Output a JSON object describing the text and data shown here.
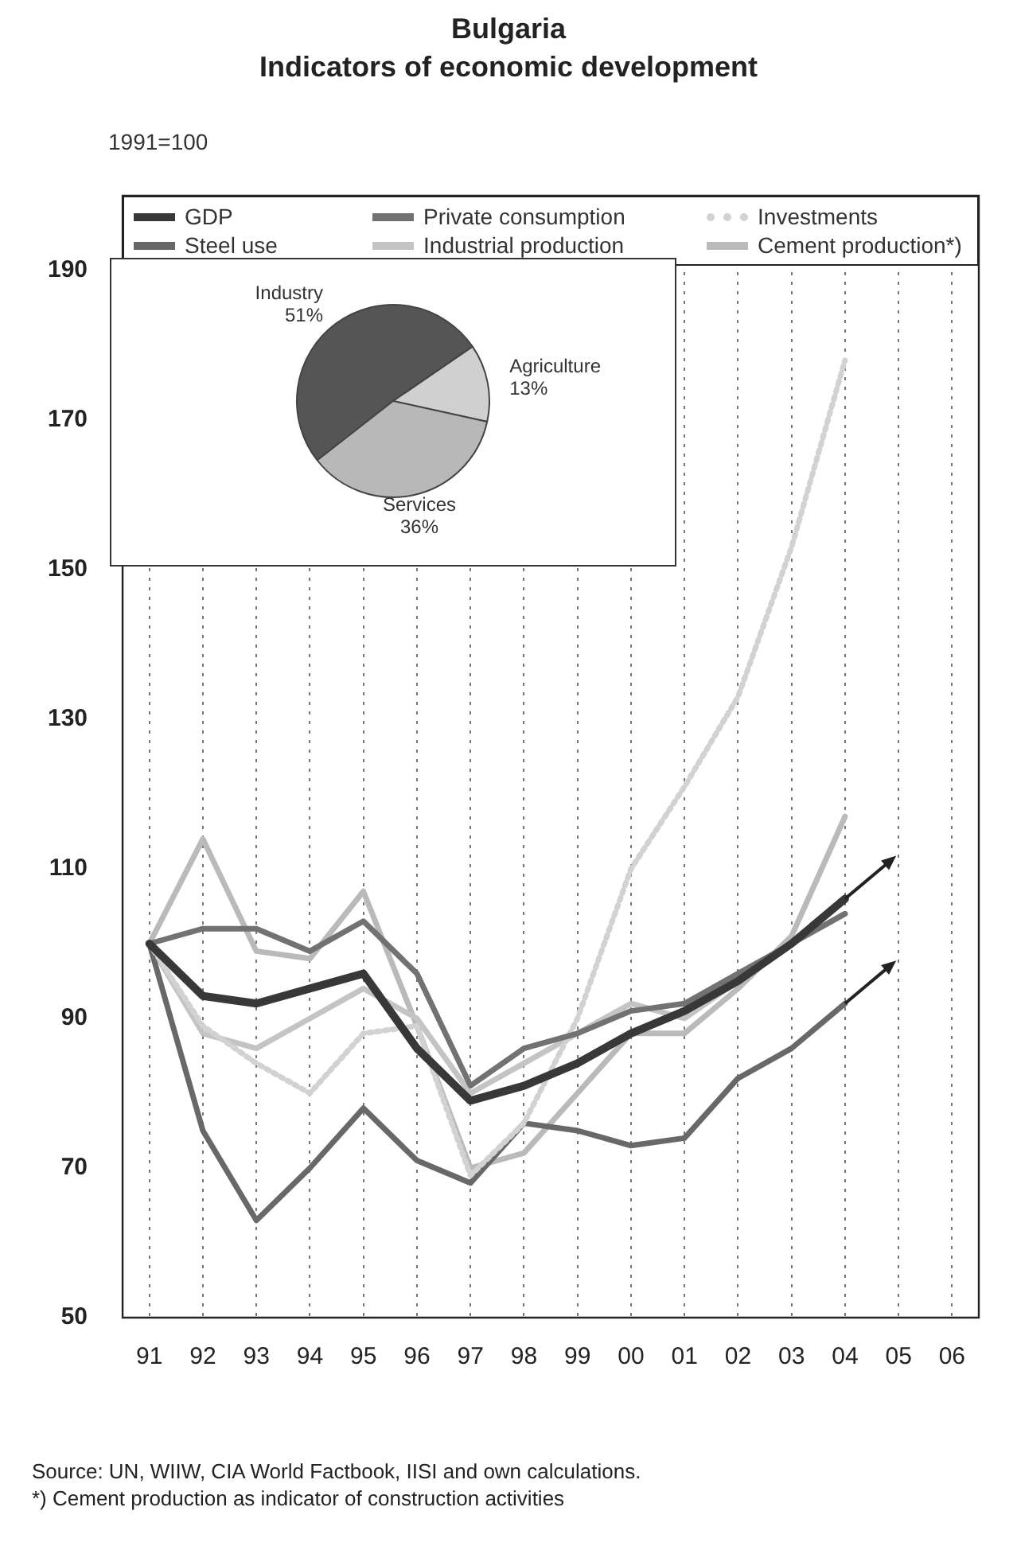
{
  "chart_data": [
    {
      "type": "line",
      "title": "Bulgaria",
      "subtitle": "Indicators of economic development",
      "ylabel": "1991=100",
      "categories": [
        "91",
        "92",
        "93",
        "94",
        "95",
        "96",
        "97",
        "98",
        "99",
        "00",
        "01",
        "02",
        "03",
        "04",
        "05",
        "06"
      ],
      "series": [
        {
          "name": "GDP",
          "color": "#383838",
          "values": [
            100,
            93,
            92,
            94,
            96,
            86,
            79,
            81,
            84,
            88,
            91,
            95,
            100,
            106,
            null,
            null
          ]
        },
        {
          "name": "Private consumption",
          "color": "#727272",
          "values": [
            100,
            102,
            102,
            99,
            103,
            96,
            81,
            86,
            88,
            91,
            92,
            96,
            100,
            104,
            null,
            null
          ]
        },
        {
          "name": "Investments",
          "color": "#d2d2d2",
          "line_style": "dotted",
          "values": [
            100,
            89,
            84,
            80,
            88,
            89,
            69,
            76,
            90,
            110,
            121,
            133,
            153,
            178,
            null,
            null
          ]
        },
        {
          "name": "Steel use",
          "color": "#686868",
          "values": [
            100,
            75,
            63,
            70,
            78,
            71,
            68,
            76,
            75,
            73,
            74,
            82,
            86,
            92,
            null,
            null
          ]
        },
        {
          "name": "Industrial production",
          "color": "#c4c4c4",
          "values": [
            100,
            88,
            86,
            90,
            94,
            90,
            80,
            84,
            88,
            92,
            90,
            95,
            100,
            104,
            null,
            null
          ]
        },
        {
          "name": "Cement production*)",
          "color": "#bababa",
          "values": [
            100,
            114,
            99,
            98,
            107,
            89,
            70,
            72,
            80,
            88,
            88,
            94,
            101,
            117,
            null,
            null
          ]
        }
      ],
      "ylim": [
        50,
        200
      ],
      "yticks": [
        50,
        70,
        90,
        110,
        130,
        150,
        170,
        190
      ],
      "grid": "x",
      "legend": "top",
      "marker": "none",
      "line_style": "solid",
      "annotations": [
        "Source: UN, WIIW, CIA World Factbook, IISI and own calculations.",
        "*) Cement production as indicator of construction activities"
      ]
    },
    {
      "type": "pie",
      "categories": [
        "Industry",
        "Agriculture",
        "Services"
      ],
      "values": [
        51,
        13,
        36
      ],
      "colors": [
        "#555555",
        "#d0d0d0",
        "#b8b8b8"
      ],
      "value_labels": [
        "51%",
        "13%",
        "36%"
      ]
    }
  ]
}
